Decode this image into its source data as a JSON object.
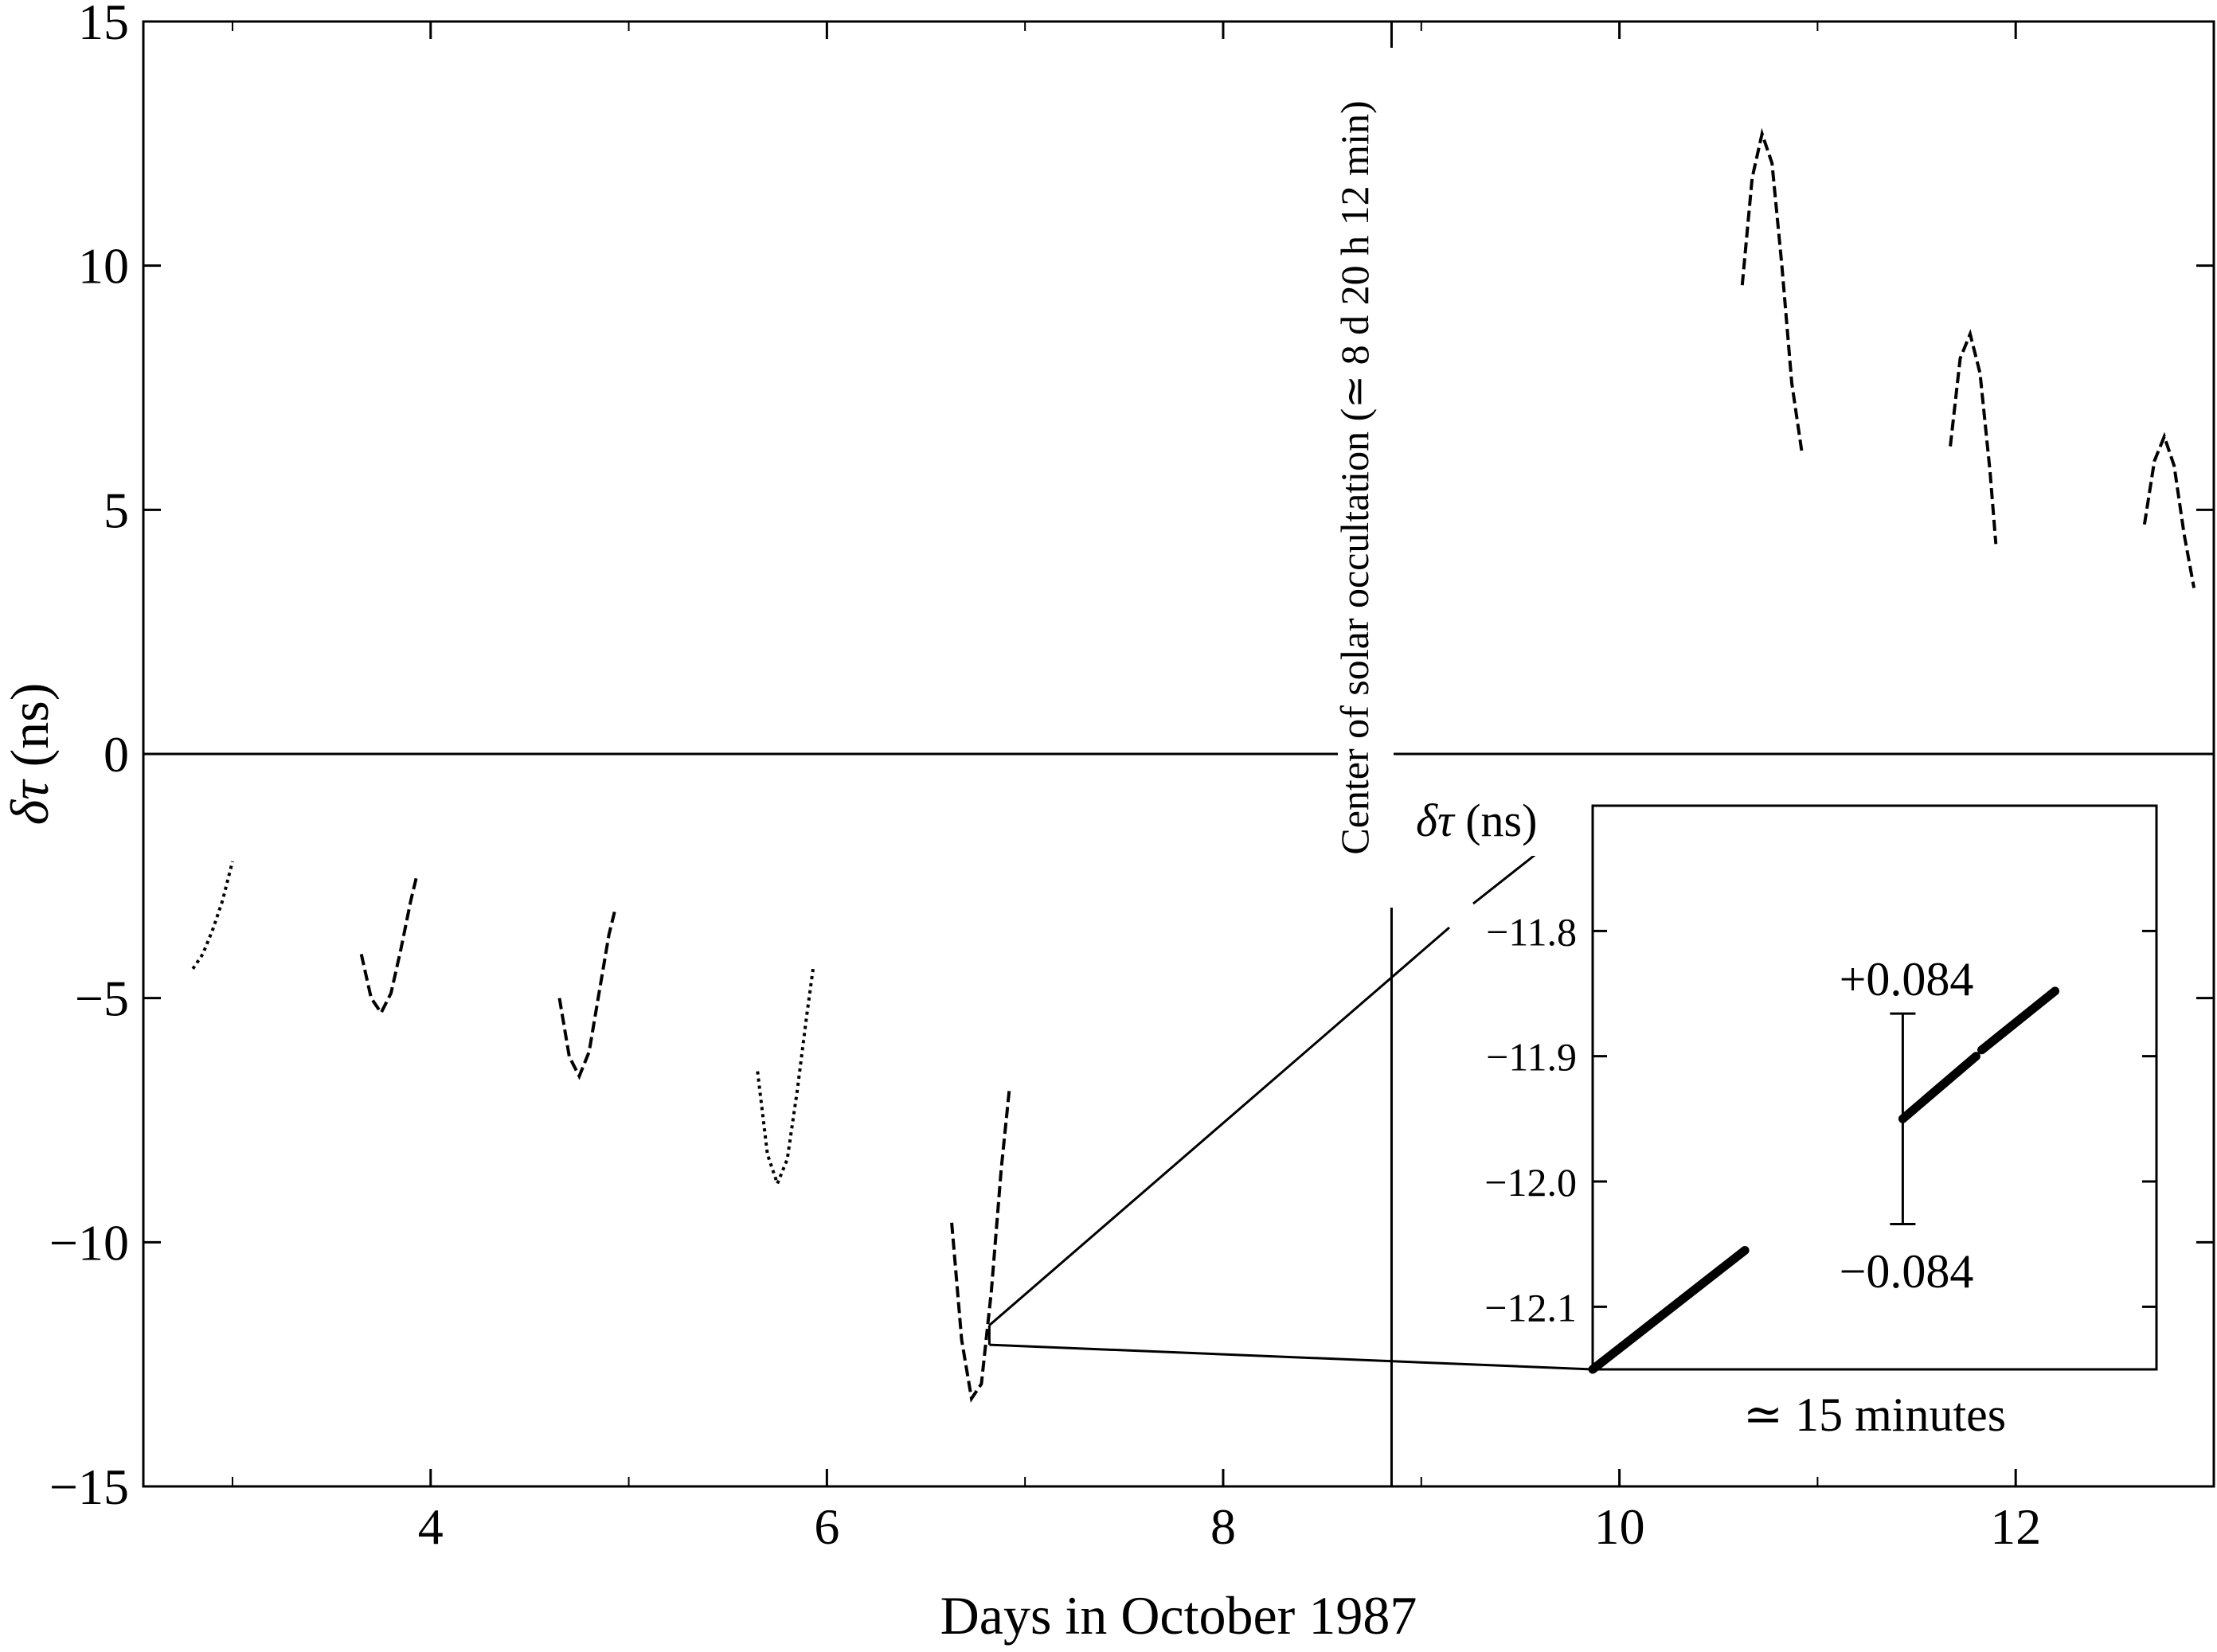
{
  "chart_data": {
    "type": "line",
    "xlabel": "Days in October 1987",
    "ylabel_symbol": "δτ",
    "ylabel_unit": " (ns)",
    "xlim": [
      2.55,
      13.0
    ],
    "ylim": [
      -15,
      15
    ],
    "xticks": [
      4,
      6,
      8,
      10,
      12
    ],
    "xtick_labels": [
      "4",
      "6",
      "8",
      "10",
      "12"
    ],
    "yticks": [
      -15,
      -10,
      -5,
      0,
      5,
      10,
      15
    ],
    "ytick_labels": [
      "−15",
      "−10",
      "−5",
      "0",
      "5",
      "10",
      "15"
    ],
    "occultation": {
      "x": 8.85,
      "label": "Center of solar occultation (≃ 8 d 20 h 12 min)"
    },
    "segments": [
      {
        "x": [
          2.8,
          2.85,
          2.9,
          2.95,
          3.0
        ],
        "y": [
          -4.4,
          -4.1,
          -3.6,
          -3.0,
          -2.2
        ],
        "style": "dotted"
      },
      {
        "x": [
          3.65,
          3.7,
          3.75,
          3.8,
          3.85,
          3.9,
          3.93
        ],
        "y": [
          -4.1,
          -5.0,
          -5.3,
          -4.9,
          -4.0,
          -3.0,
          -2.5
        ],
        "style": "dashed"
      },
      {
        "x": [
          4.65,
          4.7,
          4.75,
          4.8,
          4.85,
          4.9,
          4.93
        ],
        "y": [
          -5.0,
          -6.2,
          -6.6,
          -6.1,
          -4.9,
          -3.7,
          -3.2
        ],
        "style": "dashed"
      },
      {
        "x": [
          5.65,
          5.7,
          5.75,
          5.8,
          5.85,
          5.9,
          5.93
        ],
        "y": [
          -6.5,
          -8.2,
          -8.8,
          -8.3,
          -6.9,
          -5.3,
          -4.4
        ],
        "style": "dotted"
      },
      {
        "x": [
          6.63,
          6.68,
          6.73,
          6.78,
          6.83,
          6.88,
          6.92
        ],
        "y": [
          -9.6,
          -12.0,
          -13.2,
          -12.9,
          -11.0,
          -8.5,
          -6.9
        ],
        "style": "dashed"
      },
      {
        "x": [
          10.62,
          10.67,
          10.72,
          10.77,
          10.82,
          10.87,
          10.92
        ],
        "y": [
          9.6,
          11.8,
          12.7,
          12.1,
          10.0,
          7.6,
          6.2
        ],
        "style": "dashed"
      },
      {
        "x": [
          11.67,
          11.72,
          11.77,
          11.82,
          11.87,
          11.9
        ],
        "y": [
          6.3,
          8.1,
          8.6,
          7.8,
          5.8,
          4.3
        ],
        "style": "dashed"
      },
      {
        "x": [
          12.65,
          12.7,
          12.75,
          12.8,
          12.85,
          12.9
        ],
        "y": [
          4.7,
          6.0,
          6.5,
          5.9,
          4.5,
          3.4
        ],
        "style": "dashed"
      }
    ],
    "zoom_source_x": 6.82,
    "zoom_source_y": [
      -12.1,
      -11.7
    ],
    "inset": {
      "ylabel_symbol": "δτ",
      "ylabel_unit": " (ns)",
      "xlabel": "≃ 15 minutes",
      "ylim": [
        -12.15,
        -11.7
      ],
      "yticks": [
        -11.8,
        -11.9,
        -12.0,
        -12.1
      ],
      "ytick_labels": [
        "−11.8",
        "−11.9",
        "−12.0",
        "−12.1"
      ],
      "data_segments": [
        {
          "x": [
            0.0,
            0.27
          ],
          "y": [
            -12.15,
            -12.055
          ]
        },
        {
          "x": [
            0.55,
            0.68
          ],
          "y": [
            -11.95,
            -11.9
          ]
        },
        {
          "x": [
            0.69,
            0.82
          ],
          "y": [
            -11.895,
            -11.848
          ]
        }
      ],
      "errorbar": {
        "x": 0.55,
        "center": -11.95,
        "half_range": 0.084,
        "plus_label": "+0.084",
        "minus_label": "−0.084"
      }
    }
  }
}
